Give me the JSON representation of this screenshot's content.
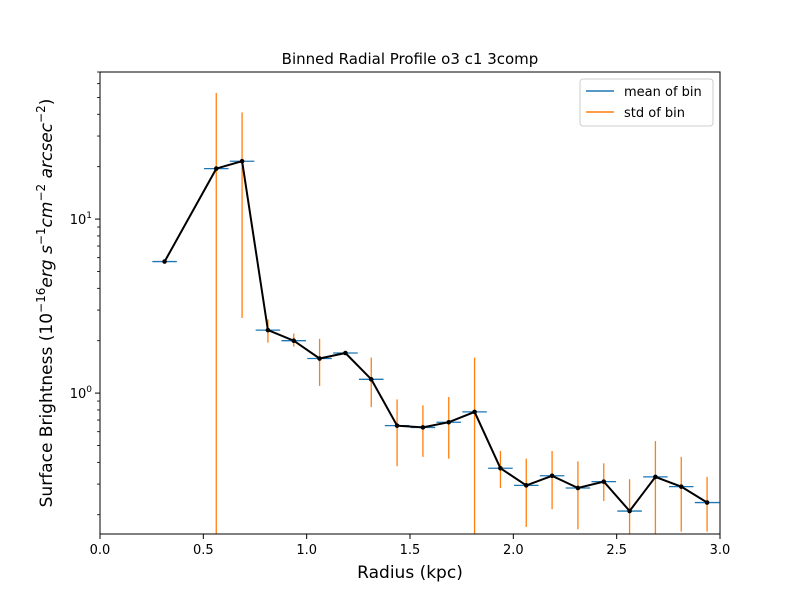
{
  "chart_data": {
    "type": "line",
    "title": "Binned Radial Profile o3 c1 3comp",
    "xlabel": "Radius (kpc)",
    "ylabel_prefix": "Surface Brightness (",
    "ylabel_suffix": ")",
    "yunit_base": "10",
    "yunit_exp": "−16",
    "yunit_rest": "erg s",
    "yunit_s_exp": "−1",
    "yunit_cm": "cm",
    "yunit_cm_exp": "−2",
    "yunit_arc": " arcsec",
    "yunit_arc_exp": "−2",
    "xlim": [
      0.0,
      3.0
    ],
    "ylim": [
      0.155,
      70
    ],
    "yscale": "log",
    "xticks": [
      0.0,
      0.5,
      1.0,
      1.5,
      2.0,
      2.5,
      3.0
    ],
    "xtick_labels": [
      "0.0",
      "0.5",
      "1.0",
      "1.5",
      "2.0",
      "2.5",
      "3.0"
    ],
    "yticks": [
      1,
      10
    ],
    "ytick_label_base": "10",
    "ytick_label_exps": [
      "0",
      "1"
    ],
    "grid": false,
    "legend": {
      "placement": "top-right",
      "entries": [
        {
          "label": "mean of bin",
          "color": "#1f77b4"
        },
        {
          "label": "std of bin",
          "color": "#ff7f0e"
        }
      ]
    },
    "colors": {
      "mean": "#1f77b4",
      "std": "#ff7f0e",
      "profile": "#000000"
    },
    "bin_halfwidth_kpc": 0.0625,
    "points": [
      {
        "x": 0.3125,
        "y": 5.7,
        "std_lo": null,
        "std_hi": null
      },
      {
        "x": 0.5625,
        "y": 19.5,
        "std_lo": 0.155,
        "std_hi": 53
      },
      {
        "x": 0.6875,
        "y": 21.5,
        "std_lo": 2.7,
        "std_hi": 41
      },
      {
        "x": 0.8125,
        "y": 2.3,
        "std_lo": 1.95,
        "std_hi": 2.65
      },
      {
        "x": 0.9375,
        "y": 2.0,
        "std_lo": 1.85,
        "std_hi": 2.2
      },
      {
        "x": 1.0625,
        "y": 1.58,
        "std_lo": 1.1,
        "std_hi": 2.05
      },
      {
        "x": 1.1875,
        "y": 1.7,
        "std_lo": null,
        "std_hi": null
      },
      {
        "x": 1.3125,
        "y": 1.2,
        "std_lo": 0.83,
        "std_hi": 1.6
      },
      {
        "x": 1.4375,
        "y": 0.65,
        "std_lo": 0.38,
        "std_hi": 0.92
      },
      {
        "x": 1.5625,
        "y": 0.635,
        "std_lo": 0.43,
        "std_hi": 0.85
      },
      {
        "x": 1.6875,
        "y": 0.68,
        "std_lo": 0.42,
        "std_hi": 0.95
      },
      {
        "x": 1.8125,
        "y": 0.78,
        "std_lo": 0.155,
        "std_hi": 1.6
      },
      {
        "x": 1.9375,
        "y": 0.37,
        "std_lo": 0.285,
        "std_hi": 0.465
      },
      {
        "x": 2.0625,
        "y": 0.295,
        "std_lo": 0.17,
        "std_hi": 0.42
      },
      {
        "x": 2.1875,
        "y": 0.335,
        "std_lo": 0.215,
        "std_hi": 0.465
      },
      {
        "x": 2.3125,
        "y": 0.285,
        "std_lo": 0.165,
        "std_hi": 0.405
      },
      {
        "x": 2.4375,
        "y": 0.31,
        "std_lo": 0.24,
        "std_hi": 0.395
      },
      {
        "x": 2.5625,
        "y": 0.21,
        "std_lo": 0.155,
        "std_hi": 0.32
      },
      {
        "x": 2.6875,
        "y": 0.33,
        "std_lo": 0.155,
        "std_hi": 0.53
      },
      {
        "x": 2.8125,
        "y": 0.29,
        "std_lo": 0.16,
        "std_hi": 0.43
      },
      {
        "x": 2.9375,
        "y": 0.235,
        "std_lo": 0.16,
        "std_hi": 0.33
      }
    ]
  }
}
